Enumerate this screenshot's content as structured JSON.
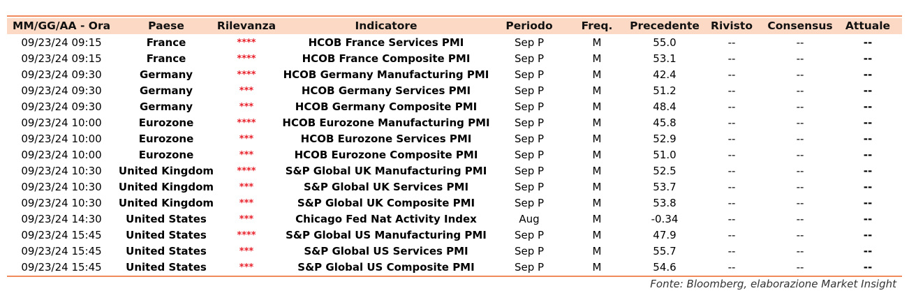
{
  "table": {
    "header": [
      "MM/GG/AA - Ora",
      "Paese",
      "Rilevanza",
      "Indicatore",
      "Periodo",
      "Freq.",
      "Precedente",
      "Rivisto",
      "Consensus",
      "Attuale"
    ],
    "rows": [
      [
        "09/23/24 09:15",
        "France",
        "****",
        "HCOB France Services PMI",
        "Sep P",
        "M",
        "55.0",
        "--",
        "--",
        "--"
      ],
      [
        "09/23/24 09:15",
        "France",
        "****",
        "HCOB France Composite PMI",
        "Sep P",
        "M",
        "53.1",
        "--",
        "--",
        "--"
      ],
      [
        "09/23/24 09:30",
        "Germany",
        "****",
        "HCOB Germany Manufacturing PMI",
        "Sep P",
        "M",
        "42.4",
        "--",
        "--",
        "--"
      ],
      [
        "09/23/24 09:30",
        "Germany",
        "***",
        "HCOB Germany Services PMI",
        "Sep P",
        "M",
        "51.2",
        "--",
        "--",
        "--"
      ],
      [
        "09/23/24 09:30",
        "Germany",
        "***",
        "HCOB Germany Composite PMI",
        "Sep P",
        "M",
        "48.4",
        "--",
        "--",
        "--"
      ],
      [
        "09/23/24 10:00",
        "Eurozone",
        "****",
        "HCOB Eurozone Manufacturing PMI",
        "Sep P",
        "M",
        "45.8",
        "--",
        "--",
        "--"
      ],
      [
        "09/23/24 10:00",
        "Eurozone",
        "***",
        "HCOB Eurozone Services PMI",
        "Sep P",
        "M",
        "52.9",
        "--",
        "--",
        "--"
      ],
      [
        "09/23/24 10:00",
        "Eurozone",
        "***",
        "HCOB Eurozone Composite PMI",
        "Sep P",
        "M",
        "51.0",
        "--",
        "--",
        "--"
      ],
      [
        "09/23/24 10:30",
        "United Kingdom",
        "****",
        "S&P Global UK Manufacturing PMI",
        "Sep P",
        "M",
        "52.5",
        "--",
        "--",
        "--"
      ],
      [
        "09/23/24 10:30",
        "United Kingdom",
        "***",
        "S&P Global UK Services PMI",
        "Sep P",
        "M",
        "53.7",
        "--",
        "--",
        "--"
      ],
      [
        "09/23/24 10:30",
        "United Kingdom",
        "***",
        "S&P Global UK Composite PMI",
        "Sep P",
        "M",
        "53.8",
        "--",
        "--",
        "--"
      ],
      [
        "09/23/24 14:30",
        "United States",
        "***",
        "Chicago Fed Nat Activity Index",
        "Aug",
        "M",
        "-0.34",
        "--",
        "--",
        "--"
      ],
      [
        "09/23/24 15:45",
        "United States",
        "****",
        "S&P Global US Manufacturing PMI",
        "Sep P",
        "M",
        "47.9",
        "--",
        "--",
        "--"
      ],
      [
        "09/23/24 15:45",
        "United States",
        "***",
        "S&P Global US Services PMI",
        "Sep P",
        "M",
        "55.7",
        "--",
        "--",
        "--"
      ],
      [
        "09/23/24 15:45",
        "United States",
        "***",
        "S&P Global US Composite PMI",
        "Sep P",
        "M",
        "54.6",
        "--",
        "--",
        "--"
      ]
    ],
    "source": "Fonte: Bloomberg, elaborazione Market Insight"
  }
}
